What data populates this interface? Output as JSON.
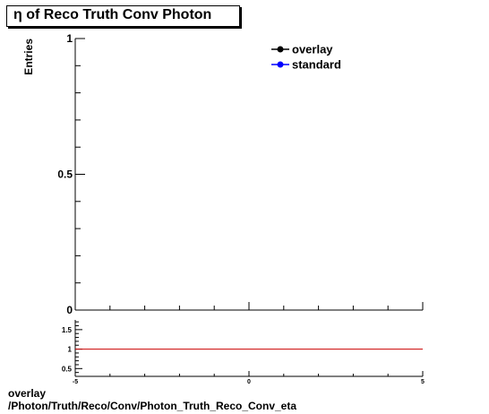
{
  "title": "η of Reco Truth Conv Photon",
  "footer": {
    "line1": "overlay",
    "line2": "/Photon/Truth/Reco/Conv/Photon_Truth_Reco_Conv_eta"
  },
  "chart_data": [
    {
      "type": "line",
      "ylabel": "Entries",
      "xlim": [
        -5,
        5
      ],
      "ylim": [
        0,
        1
      ],
      "y_ticks": [
        "0",
        "0.5",
        "1"
      ],
      "x_ticks": [
        "-5",
        "0",
        "5"
      ],
      "legend": {
        "placement": "top-right",
        "entries": [
          "overlay",
          "standard"
        ]
      },
      "series": [
        {
          "name": "overlay",
          "color": "#000000",
          "x": [],
          "y": []
        },
        {
          "name": "standard",
          "color": "#0000ff",
          "x": [],
          "y": []
        }
      ],
      "grid": false
    },
    {
      "type": "line",
      "xlim": [
        -5,
        5
      ],
      "ylim": [
        0.3,
        1.75
      ],
      "y_ticks": [
        "0.5",
        "1",
        "1.5"
      ],
      "x_ticks": [
        "-5",
        "0",
        "5"
      ],
      "reference_line": {
        "y": 1,
        "color": "#cc0000"
      },
      "grid": false
    }
  ]
}
